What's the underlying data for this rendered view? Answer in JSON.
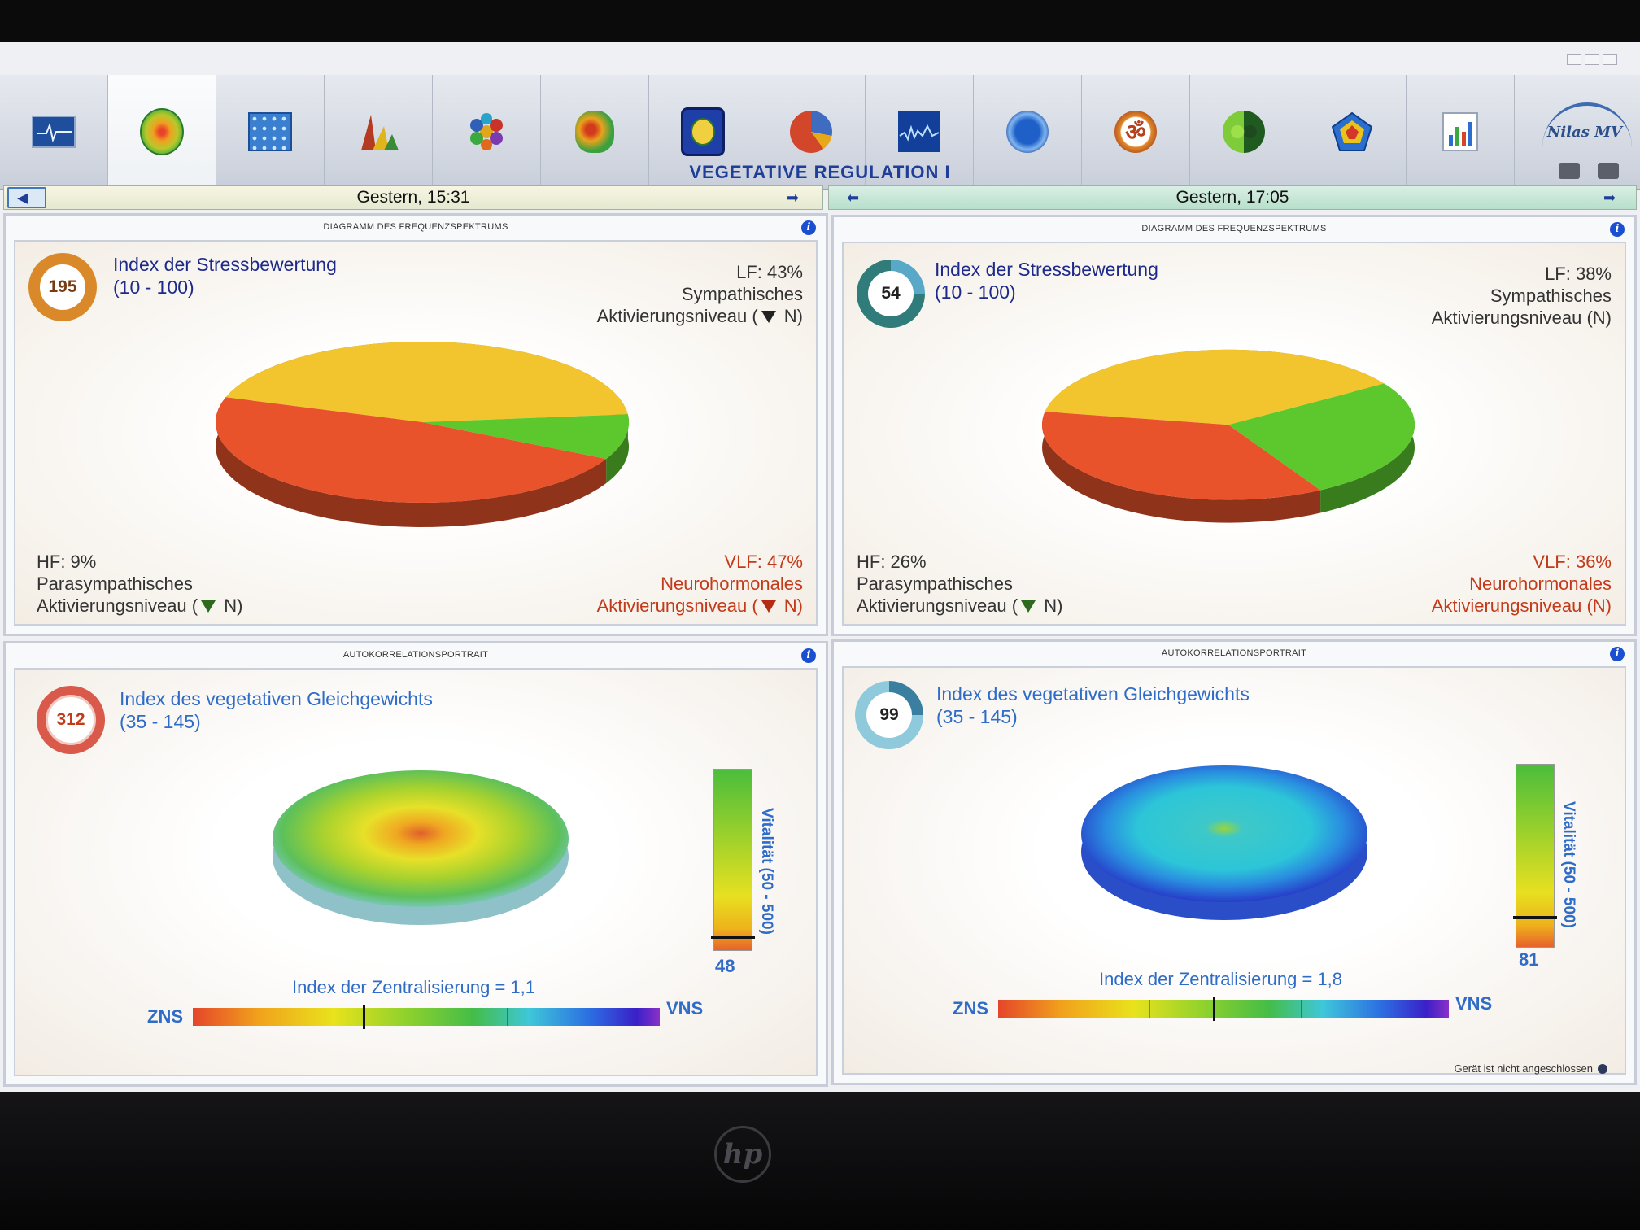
{
  "app": {
    "page_title": "VEGETATIVE REGULATION I",
    "brand": "Nilas MV",
    "status_text": "Gerät ist nicht angeschlossen"
  },
  "toolbar": {
    "items": [
      {
        "icon": "ecg-monitor-icon"
      },
      {
        "icon": "heatmap-circle-icon",
        "active": true
      },
      {
        "icon": "cells-grid-icon"
      },
      {
        "icon": "peaks-chart-icon"
      },
      {
        "icon": "hexagon-cluster-icon"
      },
      {
        "icon": "brain-map-icon"
      },
      {
        "icon": "shield-emblem-icon"
      },
      {
        "icon": "pie-chart-icon"
      },
      {
        "icon": "waveform-icon"
      },
      {
        "icon": "head-profile-icon"
      },
      {
        "icon": "om-symbol-icon"
      },
      {
        "icon": "yin-yang-icon"
      },
      {
        "icon": "pentagon-radar-icon"
      },
      {
        "icon": "bar-chart-icon"
      }
    ]
  },
  "sessions": [
    {
      "date": "Gestern, 15:31",
      "spectrum": {
        "header": "DIAGRAMM DES FREQUENZSPEKTRUMS",
        "gauge_value": "195",
        "gauge_color": "#d9892a",
        "index_title": "Index der Stressbewertung",
        "index_range": "(10 - 100)",
        "lf": {
          "label": "LF: 43%",
          "l1": "Sympathisches",
          "l2": "Aktivierungsniveau (",
          "l3": " N)"
        },
        "hf": {
          "label": "HF: 9%",
          "l1": "Parasympathisches",
          "l2": "Aktivierungsniveau  (",
          "l3": " N)"
        },
        "vlf": {
          "label": "VLF: 47%",
          "l1": "Neurohormonales",
          "l2": "Aktivierungsniveau (",
          "l3": " N)"
        }
      },
      "autocorr": {
        "header": "AUTOKORRELATIONSPORTRAIT",
        "gauge_value": "312",
        "gauge_color": "#d34a3a",
        "index_title": "Index des vegetativen Gleichgewichts",
        "index_range": "(35 - 145)",
        "vitality_label": "Vitalität (50 - 500)",
        "vitality_value": "48",
        "centralization": "Index der Zentralisierung = 1,1",
        "left_label": "ZNS",
        "right_label": "VNS"
      }
    },
    {
      "date": "Gestern, 17:05",
      "spectrum": {
        "header": "DIAGRAMM DES FREQUENZSPEKTRUMS",
        "gauge_value": "54",
        "gauge_color": "#2f7c7a",
        "index_title": "Index der Stressbewertung",
        "index_range": "(10 - 100)",
        "lf": {
          "label": "LF: 38%",
          "l1": "Sympathisches",
          "l2": "Aktivierungsniveau (N)"
        },
        "hf": {
          "label": "HF: 26%",
          "l1": "Parasympathisches",
          "l2": "Aktivierungsniveau  (",
          "l3": " N)"
        },
        "vlf": {
          "label": "VLF: 36%",
          "l1": "Neurohormonales",
          "l2": "Aktivierungsniveau (N)"
        }
      },
      "autocorr": {
        "header": "AUTOKORRELATIONSPORTRAIT",
        "gauge_value": "99",
        "gauge_color": "#4aa0b8",
        "index_title": "Index des vegetativen Gleichgewichts",
        "index_range": "(35 - 145)",
        "vitality_label": "Vitalität (50 - 500)",
        "vitality_value": "81",
        "centralization": "Index der Zentralisierung = 1,8",
        "left_label": "ZNS",
        "right_label": "VNS"
      }
    }
  ],
  "chart_data": [
    {
      "type": "pie",
      "categories": [
        "LF",
        "HF",
        "VLF"
      ],
      "values": [
        43,
        9,
        47
      ],
      "colors": [
        "#f2c52e",
        "#5cc82e",
        "#e8532c"
      ]
    },
    {
      "type": "pie",
      "categories": [
        "LF",
        "HF",
        "VLF"
      ],
      "values": [
        38,
        26,
        36
      ],
      "colors": [
        "#f2c52e",
        "#5cc82e",
        "#e8532c"
      ]
    }
  ]
}
